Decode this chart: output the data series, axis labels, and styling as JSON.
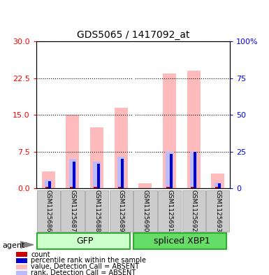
{
  "title": "GDS5065 / 1417092_at",
  "samples": [
    "GSM1125686",
    "GSM1125687",
    "GSM1125688",
    "GSM1125689",
    "GSM1125690",
    "GSM1125691",
    "GSM1125692",
    "GSM1125693"
  ],
  "value_absent": [
    3.5,
    15.0,
    12.5,
    16.5,
    1.0,
    23.5,
    24.0,
    3.0
  ],
  "rank_absent": [
    1.8,
    6.0,
    5.5,
    6.5,
    0.0,
    7.5,
    7.5,
    1.2
  ],
  "count_val": [
    0.3,
    0.3,
    0.3,
    0.3,
    0.0,
    0.3,
    0.3,
    0.3
  ],
  "percentile_val": [
    1.5,
    5.5,
    5.0,
    6.0,
    0.0,
    7.0,
    7.5,
    1.0
  ],
  "left_ylim": [
    0,
    30
  ],
  "left_yticks": [
    0,
    7.5,
    15,
    22.5,
    30
  ],
  "right_tick_labels": [
    "0",
    "25",
    "50",
    "75",
    "100%"
  ],
  "color_value_absent": "#ffbbbb",
  "color_rank_absent": "#bbbbff",
  "color_count": "#cc0000",
  "color_percentile": "#0000cc",
  "legend_items": [
    {
      "label": "count",
      "color": "#cc0000"
    },
    {
      "label": "percentile rank within the sample",
      "color": "#0000cc"
    },
    {
      "label": "value, Detection Call = ABSENT",
      "color": "#ffbbbb"
    },
    {
      "label": "rank, Detection Call = ABSENT",
      "color": "#bbbbff"
    }
  ]
}
